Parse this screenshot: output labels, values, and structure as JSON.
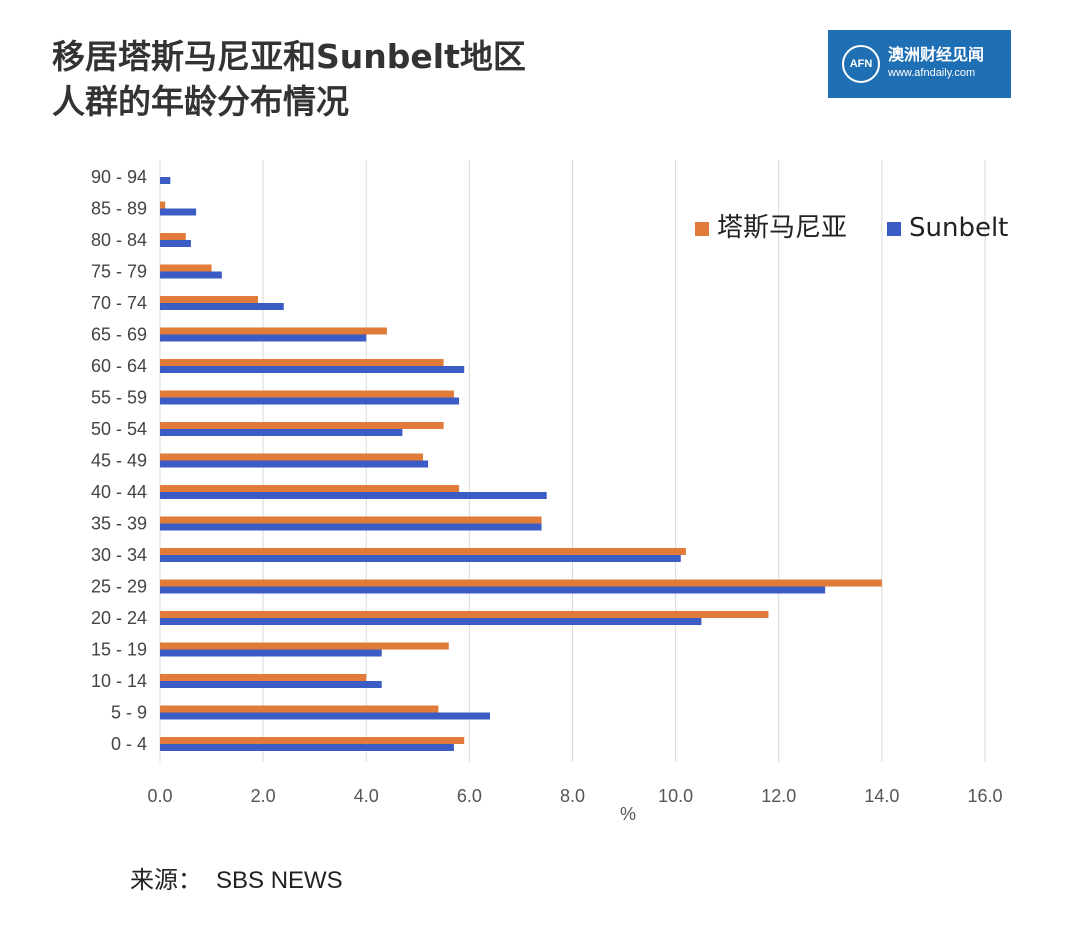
{
  "title_line1": "移居塔斯马尼亚和Sunbelt地区",
  "title_line2": "人群的年龄分布情况",
  "logo": {
    "name": "澳洲财经见闻",
    "url": "www.afndaily.com",
    "mark": "AFN",
    "color": "#1f6fb4"
  },
  "source": {
    "label": "来源：",
    "value": "SBS NEWS"
  },
  "chart_data": {
    "type": "bar",
    "orientation": "horizontal",
    "categories": [
      "90 - 94",
      "85 - 89",
      "80 - 84",
      "75 - 79",
      "70 - 74",
      "65 - 69",
      "60 - 64",
      "55 - 59",
      "50 - 54",
      "45 - 49",
      "40 - 44",
      "35 - 39",
      "30 - 34",
      "25 - 29",
      "20 - 24",
      "15 - 19",
      "10 - 14",
      "5 - 9",
      "0 - 4"
    ],
    "series": [
      {
        "name": "塔斯马尼亚",
        "color": "#e07b39",
        "values": [
          0.0,
          0.1,
          0.5,
          1.0,
          1.9,
          4.4,
          5.5,
          5.7,
          5.5,
          5.1,
          5.8,
          7.4,
          10.2,
          14.0,
          11.8,
          5.6,
          4.0,
          5.4,
          5.9
        ]
      },
      {
        "name": "Sunbelt",
        "color": "#3b5cc4",
        "values": [
          0.2,
          0.7,
          0.6,
          1.2,
          2.4,
          4.0,
          5.9,
          5.8,
          4.7,
          5.2,
          7.5,
          7.4,
          10.1,
          12.9,
          10.5,
          4.3,
          4.3,
          6.4,
          5.7
        ]
      }
    ],
    "xlabel": "%",
    "xlim": [
      0,
      16
    ],
    "xticks": [
      "0.0",
      "2.0",
      "4.0",
      "6.0",
      "8.0",
      "10.0",
      "12.0",
      "14.0",
      "16.0"
    ],
    "grid": "vertical",
    "legend": "top-right"
  }
}
